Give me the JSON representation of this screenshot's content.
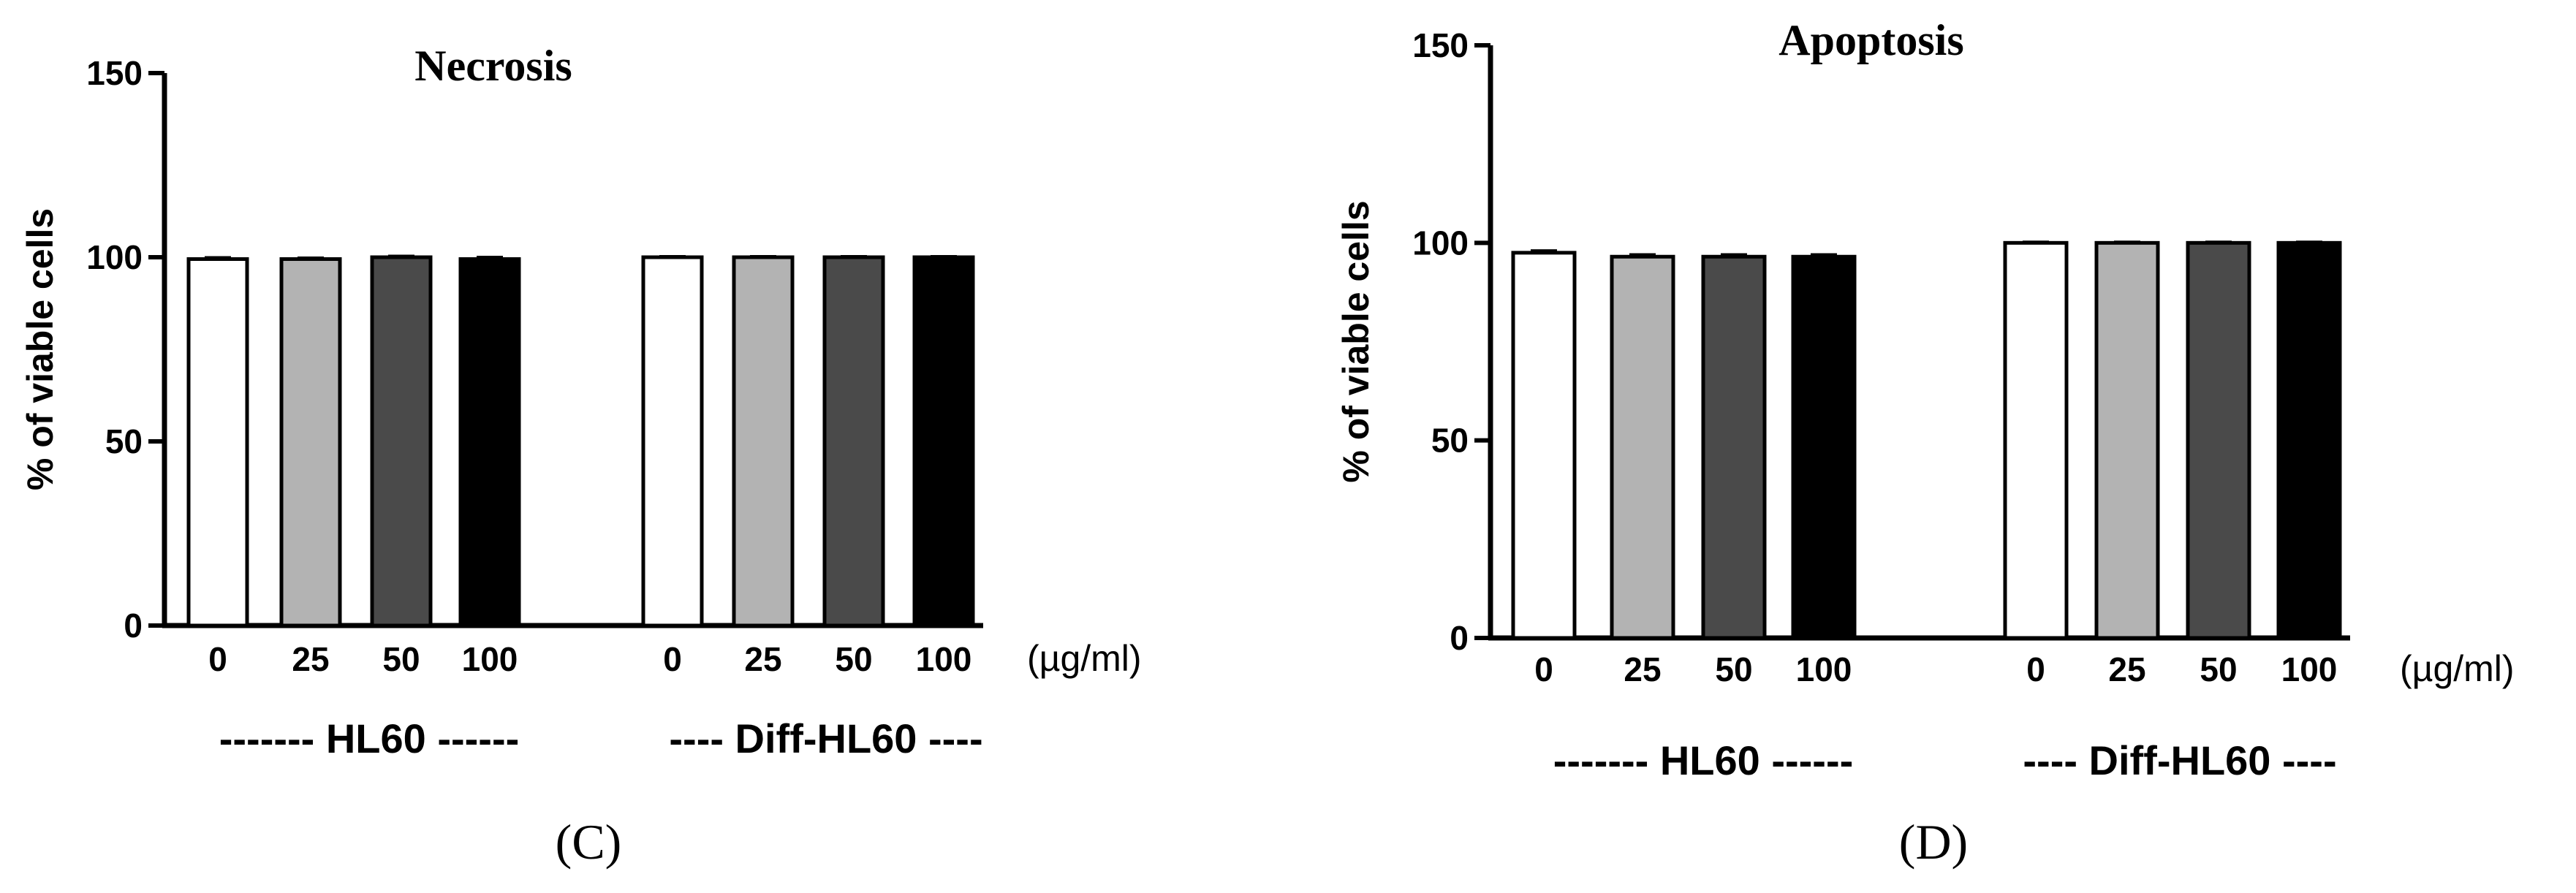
{
  "chart_data": [
    {
      "type": "bar",
      "panel_label": "(C)",
      "title": "Necrosis",
      "ylabel": "% of viable cells",
      "ylim": [
        0,
        150
      ],
      "yticks": [
        0,
        50,
        100,
        150
      ],
      "unit_label": "(µg/ml)",
      "groups": [
        {
          "label": "------- HL60 ------",
          "categories": [
            "0",
            "25",
            "50",
            "100"
          ],
          "values": [
            99.5,
            99.5,
            100,
            99.5
          ],
          "errors": [
            0.4,
            0.3,
            0.3,
            0.5
          ]
        },
        {
          "label": "---- Diff-HL60 ----",
          "categories": [
            "0",
            "25",
            "50",
            "100"
          ],
          "values": [
            100,
            100,
            100,
            100
          ],
          "errors": [
            0.2,
            0.2,
            0.2,
            0.2
          ]
        }
      ],
      "bar_colors": [
        "#ffffff",
        "#b3b3b3",
        "#4a4a4a",
        "#000000"
      ],
      "grid": false
    },
    {
      "type": "bar",
      "panel_label": "(D)",
      "title": "Apoptosis",
      "ylabel": "% of viable cells",
      "ylim": [
        0,
        150
      ],
      "yticks": [
        0,
        50,
        100,
        150
      ],
      "unit_label": "(µg/ml)",
      "groups": [
        {
          "label": "------- HL60 ------",
          "categories": [
            "0",
            "25",
            "50",
            "100"
          ],
          "values": [
            97.5,
            96.5,
            96.5,
            96.5
          ],
          "errors": [
            0.5,
            0.5,
            0.5,
            0.5
          ]
        },
        {
          "label": "---- Diff-HL60 ----",
          "categories": [
            "0",
            "25",
            "50",
            "100"
          ],
          "values": [
            100,
            100,
            100,
            100
          ],
          "errors": [
            0.2,
            0.2,
            0.2,
            0.2
          ]
        }
      ],
      "bar_colors": [
        "#ffffff",
        "#b3b3b3",
        "#4a4a4a",
        "#000000"
      ],
      "grid": false
    }
  ]
}
